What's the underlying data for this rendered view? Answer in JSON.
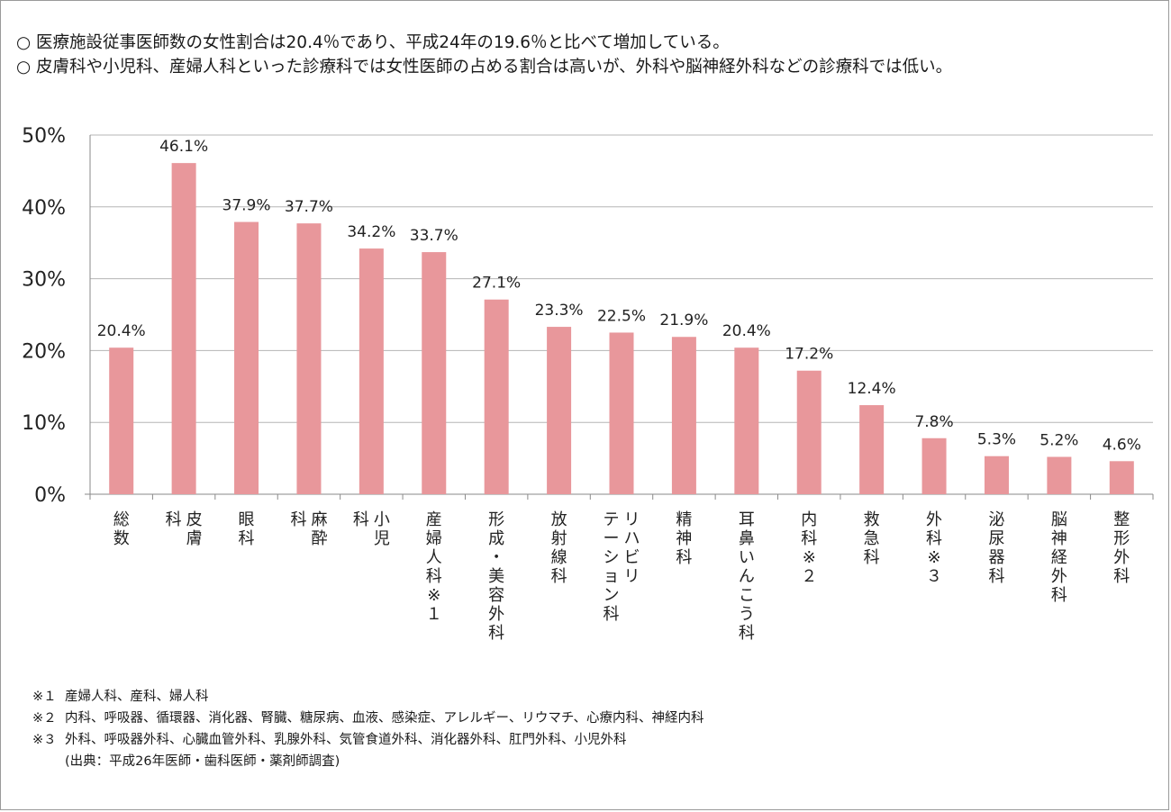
{
  "header": {
    "lines": [
      "○ 医療施設従事医師数の女性割合は20.4％であり、平成24年の19.6％と比べて増加している。",
      "○ 皮膚科や小児科、産婦人科といった診療科では女性医師の占める割合は高いが、外科や脳神経外科などの診療科では低い。"
    ]
  },
  "chart_data": {
    "type": "bar",
    "title": "",
    "xlabel": "",
    "ylabel": "",
    "ylim": [
      0,
      50
    ],
    "yticks": [
      "0%",
      "10%",
      "20%",
      "30%",
      "40%",
      "50%"
    ],
    "grid": true,
    "bar_color": "#e8979b",
    "categories": [
      "総数",
      "皮膚科",
      "眼科",
      "麻酔科",
      "小児科",
      "産婦人科※1",
      "形成・美容外科",
      "放射線科",
      "リハビリテーション科",
      "精神科",
      "耳鼻いんこう科",
      "内科※2",
      "救急科",
      "外科※3",
      "泌尿器科",
      "脳神経外科",
      "整形外科"
    ],
    "values": [
      20.4,
      46.1,
      37.9,
      37.7,
      34.2,
      33.7,
      27.1,
      23.3,
      22.5,
      21.9,
      20.4,
      17.2,
      12.4,
      7.8,
      5.3,
      5.2,
      4.6
    ],
    "data_labels": [
      "20.4%",
      "46.1%",
      "37.9%",
      "37.7%",
      "34.2%",
      "33.7%",
      "27.1%",
      "23.3%",
      "22.5%",
      "21.9%",
      "20.4%",
      "17.2%",
      "12.4%",
      "7.8%",
      "5.3%",
      "5.2%",
      "4.6%"
    ],
    "category_label_columns": [
      [
        "総数"
      ],
      [
        "皮膚",
        "科"
      ],
      [
        "眼科"
      ],
      [
        "麻酔",
        "科"
      ],
      [
        "小児",
        "科"
      ],
      [
        "産婦人科※１"
      ],
      [
        "形成・美容外科"
      ],
      [
        "放射線科"
      ],
      [
        "リハビリ",
        "テーション科"
      ],
      [
        "精神科"
      ],
      [
        "耳鼻いんこう科"
      ],
      [
        "内科※２"
      ],
      [
        "救急科"
      ],
      [
        "外科※３"
      ],
      [
        "泌尿器科"
      ],
      [
        "脳神経外科"
      ],
      [
        "整形外科"
      ]
    ]
  },
  "notes": [
    {
      "mark": "※１",
      "text": "産婦人科、産科、婦人科"
    },
    {
      "mark": "※２",
      "text": "内科、呼吸器、循環器、消化器、腎臓、糖尿病、血液、感染症、アレルギー、リウマチ、心療内科、神経内科"
    },
    {
      "mark": "※３",
      "text": "外科、呼吸器外科、心臓血管外科、乳腺外科、気管食道外科、消化器外科、肛門外科、小児外科"
    }
  ],
  "source": "(出典：平成26年医師・歯科医師・薬剤師調査)"
}
